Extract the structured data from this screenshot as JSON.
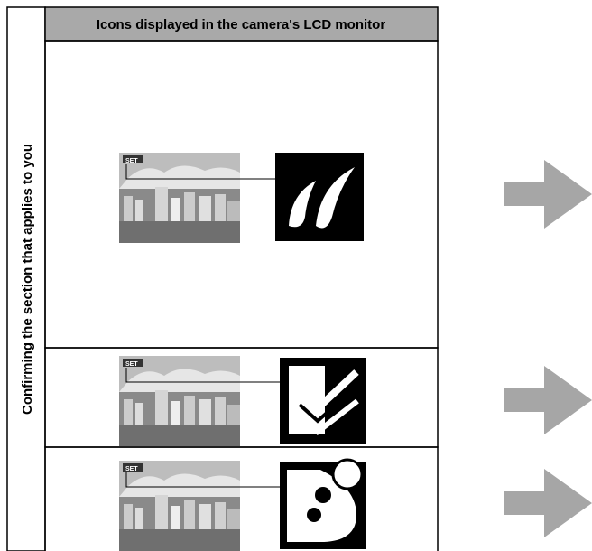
{
  "header": {
    "title": "Icons displayed in the camera's LCD monitor"
  },
  "sidebar": {
    "label": "Confirming the section that applies to you"
  },
  "rows": [
    {
      "badge": "SET"
    },
    {
      "badge": "SET"
    },
    {
      "badge": "SET"
    }
  ]
}
